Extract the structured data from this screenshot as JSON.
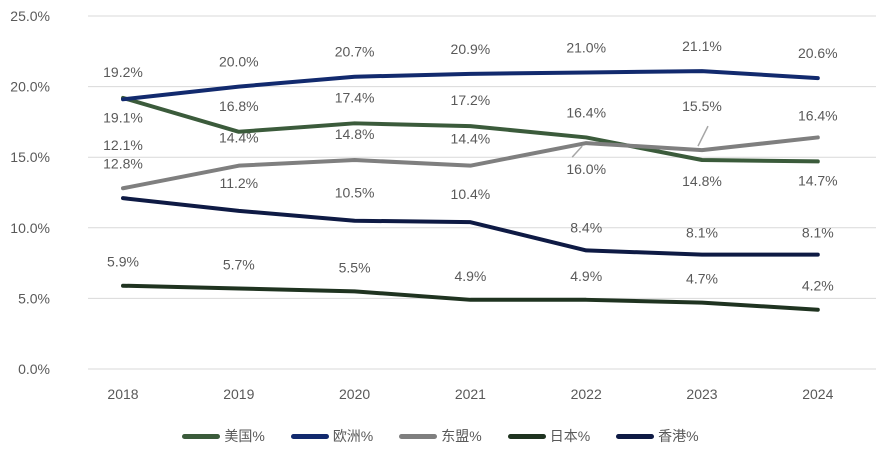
{
  "chart_data": {
    "type": "line",
    "categories": [
      "2018",
      "2019",
      "2020",
      "2021",
      "2022",
      "2023",
      "2024"
    ],
    "ylim": [
      0,
      25
    ],
    "yticks": [
      "0.0%",
      "5.0%",
      "10.0%",
      "15.0%",
      "20.0%",
      "25.0%"
    ],
    "grid": true,
    "legend_position": "bottom",
    "series": [
      {
        "name": "美国%",
        "color": "#3b5b3b",
        "values": [
          19.2,
          16.8,
          17.4,
          17.2,
          16.4,
          14.8,
          14.7
        ],
        "labels": [
          "19.2%",
          "16.8%",
          "17.4%",
          "17.2%",
          "16.4%",
          "14.8%",
          "14.7%"
        ]
      },
      {
        "name": "欧洲%",
        "color": "#122a6e",
        "values": [
          19.1,
          20.0,
          20.7,
          20.9,
          21.0,
          21.1,
          20.6
        ],
        "labels": [
          "19.1%",
          "20.0%",
          "20.7%",
          "20.9%",
          "21.0%",
          "21.1%",
          "20.6%"
        ]
      },
      {
        "name": "东盟%",
        "color": "#7f7f7f",
        "values": [
          12.8,
          14.4,
          14.8,
          14.4,
          16.0,
          15.5,
          16.4
        ],
        "labels": [
          "12.8%",
          "14.4%",
          "14.8%",
          "14.4%",
          "16.0%",
          "15.5%",
          "16.4%"
        ]
      },
      {
        "name": "日本%",
        "color": "#1f3320",
        "values": [
          5.9,
          5.7,
          5.5,
          4.9,
          4.9,
          4.7,
          4.2
        ],
        "labels": [
          "5.9%",
          "5.7%",
          "5.5%",
          "4.9%",
          "4.9%",
          "4.7%",
          "4.2%"
        ]
      },
      {
        "name": "香港%",
        "color": "#0e1a44",
        "values": [
          12.1,
          11.2,
          10.5,
          10.4,
          8.4,
          8.1,
          8.1
        ],
        "labels": [
          "12.1%",
          "11.2%",
          "10.5%",
          "10.4%",
          "8.4%",
          "8.1%",
          "8.1%"
        ]
      }
    ]
  }
}
